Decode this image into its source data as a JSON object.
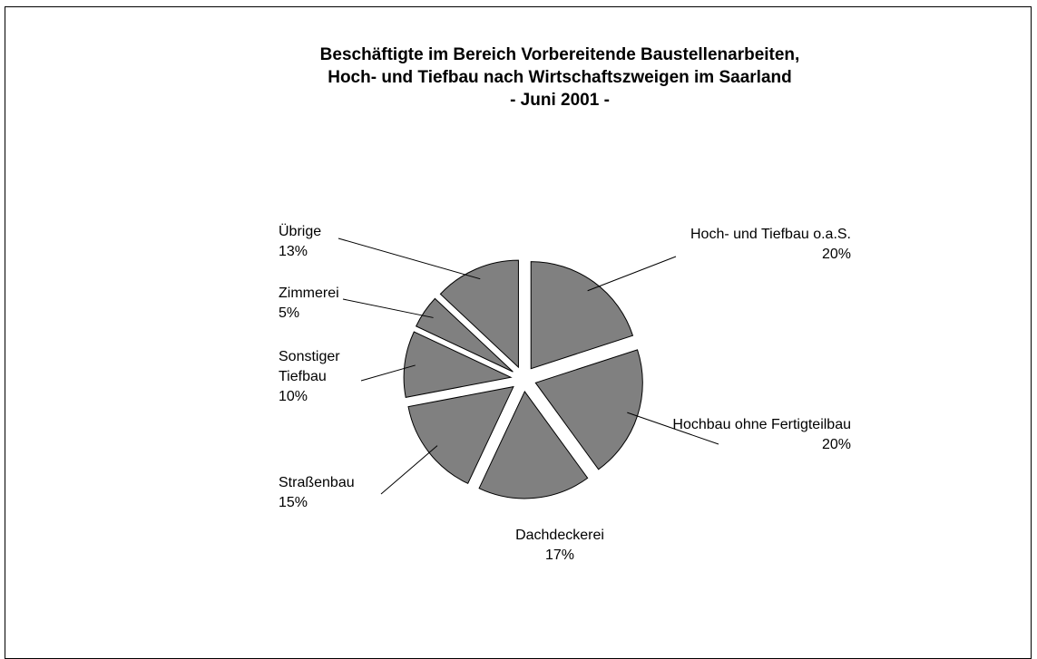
{
  "chart_data": {
    "type": "pie",
    "title": "Beschäftigte im Bereich Vorbereitende Baustellenarbeiten,\nHoch- und Tiefbau nach Wirtschaftszweigen im Saarland\n- Juni 2001 -",
    "categories": [
      "Hoch- und Tiefbau o.a.S.",
      "Hochbau ohne Fertigteilbau",
      "Dachdeckerei",
      "Straßenbau",
      "Sonstiger Tiefbau",
      "Zimmerei",
      "Übrige"
    ],
    "values": [
      20,
      20,
      17,
      15,
      10,
      5,
      13
    ],
    "value_labels": [
      "20%",
      "20%",
      "17%",
      "15%",
      "10%",
      "5%",
      "13%"
    ],
    "color": "#808080"
  }
}
